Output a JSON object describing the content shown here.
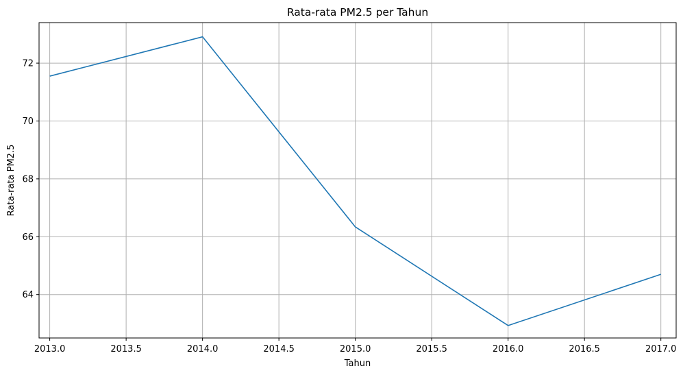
{
  "chart_data": {
    "type": "line",
    "title": "Rata-rata PM2.5 per Tahun",
    "xlabel": "Tahun",
    "ylabel": "Rata-rata PM2.5",
    "x": [
      2013,
      2014,
      2015,
      2016,
      2017
    ],
    "series": [
      {
        "values": [
          71.55,
          72.91,
          66.34,
          62.93,
          64.7
        ]
      }
    ],
    "xlim": [
      2012.93,
      2017.1
    ],
    "ylim": [
      62.5,
      73.4
    ],
    "xticks": [
      "2013.0",
      "2013.5",
      "2014.0",
      "2014.5",
      "2015.0",
      "2015.5",
      "2016.0",
      "2016.5",
      "2017.0"
    ],
    "yticks": [
      "64",
      "66",
      "68",
      "70",
      "72"
    ],
    "grid": true,
    "line_color": "#1f77b4",
    "grid_color": "#b0b0b0"
  }
}
